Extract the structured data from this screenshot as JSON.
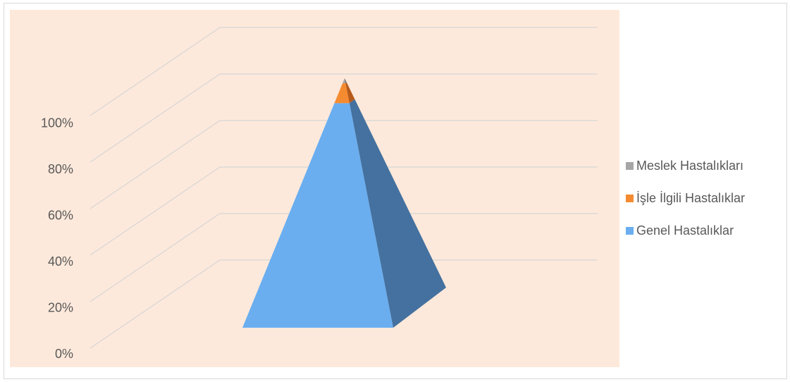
{
  "chart_data": {
    "type": "pyramid",
    "y_ticks": [
      "0%",
      "20%",
      "40%",
      "60%",
      "80%",
      "100%"
    ],
    "ylim": [
      0,
      100
    ],
    "stack_top": 100,
    "series": [
      {
        "name": "Genel Hastalıklar",
        "value": 90,
        "color": "#6aaef0",
        "side_color": "#44719f"
      },
      {
        "name": "İşle İlgili Hastalıklar",
        "value": 8,
        "color": "#f58b30",
        "side_color": "#b55a1b"
      },
      {
        "name": "Meslek Hastalıkları",
        "value": 2,
        "color": "#a6a6a6",
        "side_color": "#6b6b6b"
      }
    ],
    "legend_order": [
      2,
      1,
      0
    ],
    "legend_position": "right",
    "grid": true
  }
}
